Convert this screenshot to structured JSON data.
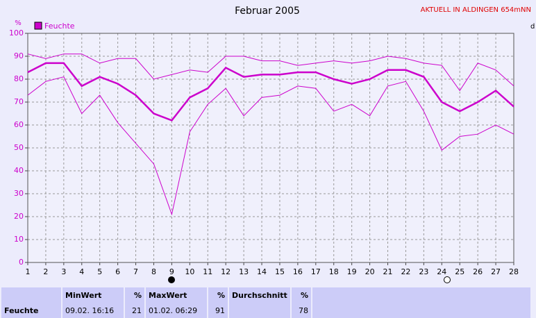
{
  "chart_data": {
    "type": "line",
    "title": "Februar 2005",
    "station": "AKTUELL IN ALDINGEN 654mNN",
    "y_unit": "%",
    "right_label": "d",
    "x": [
      1,
      2,
      3,
      4,
      5,
      6,
      7,
      8,
      9,
      10,
      11,
      12,
      13,
      14,
      15,
      16,
      17,
      18,
      19,
      20,
      21,
      22,
      23,
      24,
      25,
      26,
      27,
      28
    ],
    "xlim": [
      1,
      28
    ],
    "xticks": [
      1,
      2,
      3,
      4,
      5,
      6,
      7,
      8,
      9,
      10,
      11,
      12,
      13,
      14,
      15,
      16,
      17,
      18,
      19,
      20,
      21,
      22,
      23,
      24,
      25,
      26,
      27,
      28
    ],
    "ylim": [
      0,
      100
    ],
    "yticks": [
      0,
      10,
      20,
      30,
      40,
      50,
      60,
      70,
      80,
      90,
      100
    ],
    "grid": true,
    "series": [
      {
        "name": "Feuchte",
        "color": "#cc00cc",
        "values": [
          83,
          87,
          87,
          77,
          81,
          78,
          73,
          65,
          62,
          72,
          76,
          85,
          81,
          82,
          82,
          83,
          83,
          80,
          78,
          80,
          84,
          84,
          81,
          70,
          66,
          70,
          75,
          68
        ],
        "upper": [
          91,
          89,
          91,
          91,
          87,
          89,
          89,
          80,
          82,
          84,
          83,
          90,
          90,
          88,
          88,
          86,
          87,
          88,
          87,
          88,
          90,
          89,
          87,
          86,
          75,
          87,
          84,
          77
        ],
        "lower": [
          73,
          79,
          81,
          65,
          73,
          61,
          52,
          43,
          21,
          57,
          69,
          76,
          64,
          72,
          73,
          77,
          76,
          66,
          69,
          64,
          77,
          79,
          66,
          49,
          55,
          56,
          60,
          56
        ]
      }
    ]
  },
  "table": {
    "headers": [
      "MinWert",
      "%",
      "MaxWert",
      "%",
      "Durchschnitt",
      "%"
    ],
    "rows": [
      [
        "Feuchte",
        "09.02.  16:16",
        21,
        "01.02.  06:29",
        91,
        78
      ]
    ]
  }
}
